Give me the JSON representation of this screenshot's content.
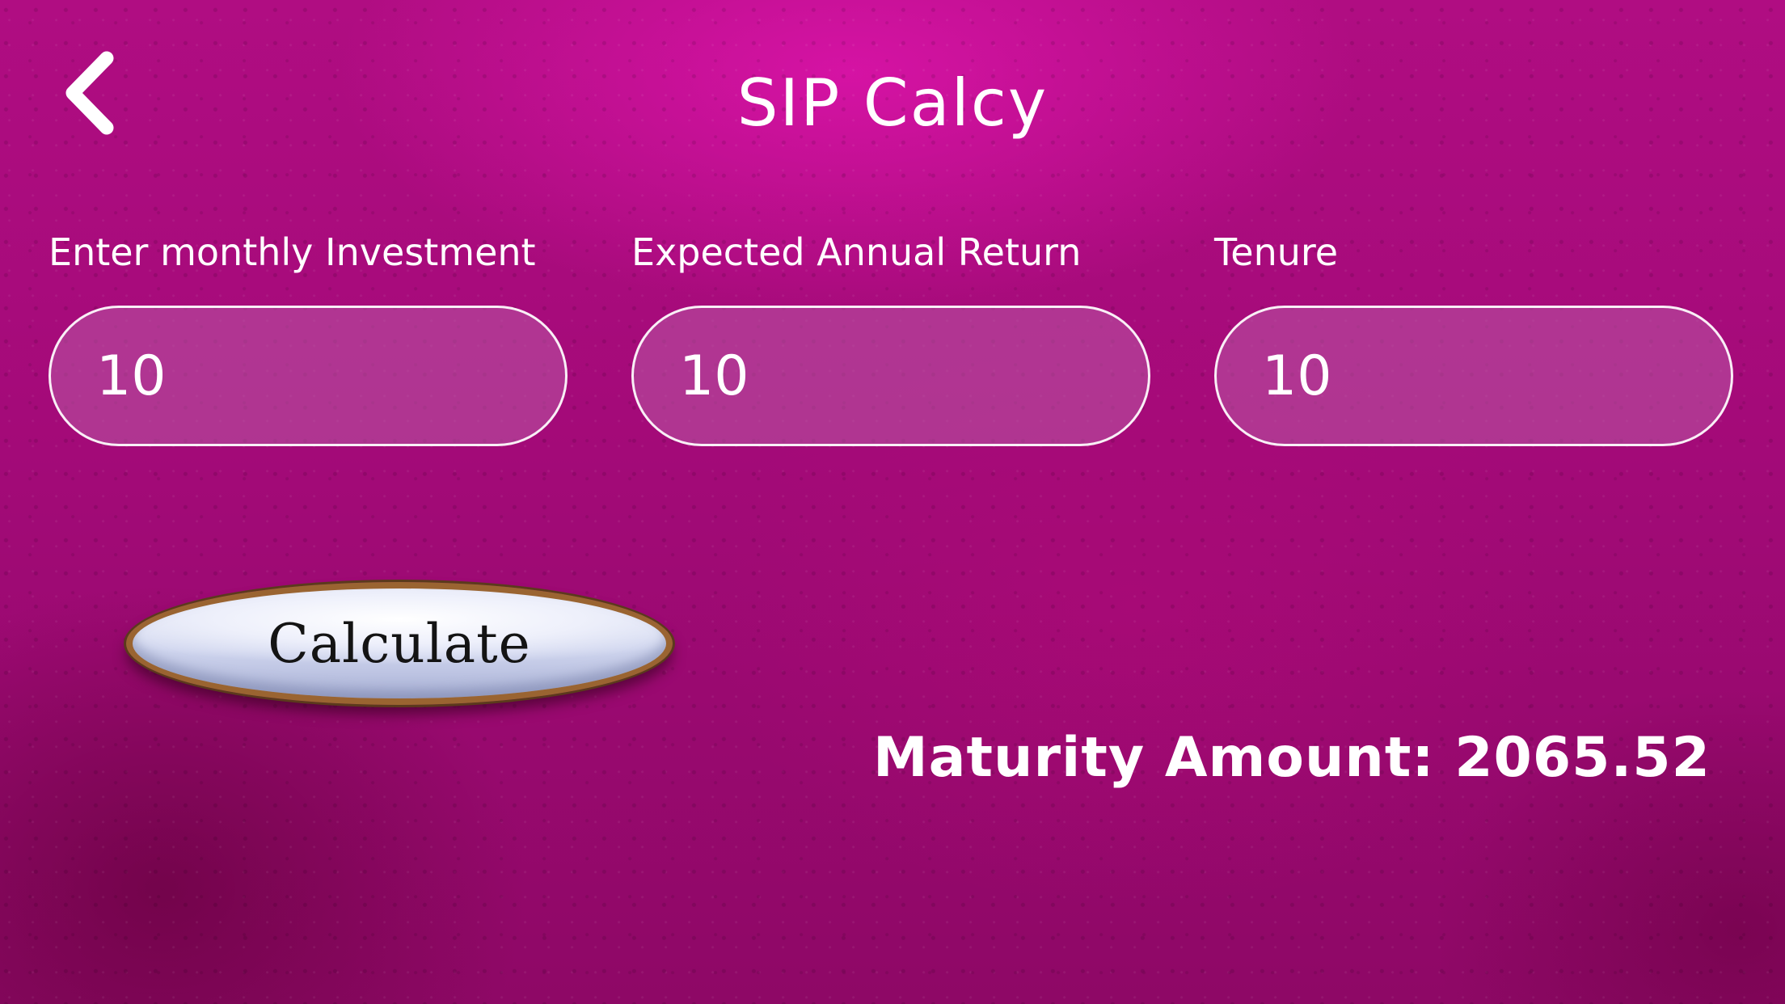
{
  "header": {
    "title": "SIP Calcy",
    "back_icon": "chevron-left-icon"
  },
  "form": {
    "monthly_investment": {
      "label": "Enter monthly Investment",
      "value": "10"
    },
    "annual_return": {
      "label": "Expected Annual Return",
      "value": "10"
    },
    "tenure": {
      "label": "Tenure",
      "value": "10"
    }
  },
  "actions": {
    "calculate_label": "Calculate"
  },
  "result": {
    "text": "Maturity Amount: 2065.52"
  },
  "colors": {
    "background": "#a30a78",
    "accent_glow": "#dc14aa",
    "input_fill": "#b95aa5",
    "button_rim": "#9a6431",
    "text": "#ffffff"
  }
}
